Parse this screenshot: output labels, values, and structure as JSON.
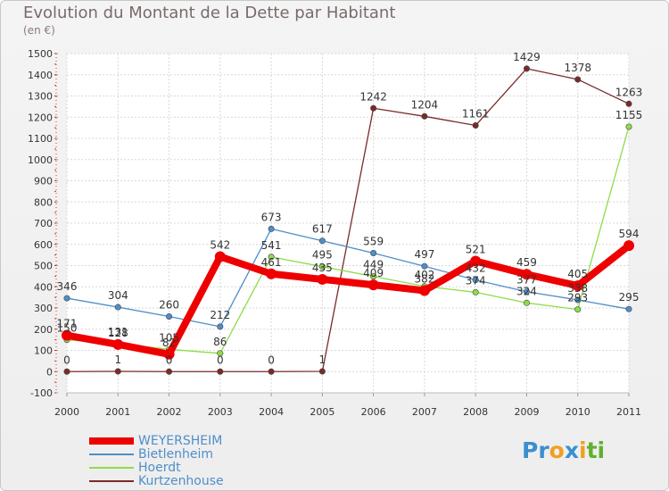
{
  "title": "Evolution du Montant de la Dette par Habitant",
  "subtitle": "(en €)",
  "logo": {
    "parts": [
      {
        "t": "Pr",
        "color": "#3a8fd0"
      },
      {
        "t": "o",
        "color": "#f0a020"
      },
      {
        "t": "x",
        "color": "#3a8fd0"
      },
      {
        "t": "i",
        "color": "#f0a020"
      },
      {
        "t": "ti",
        "color": "#60b030"
      }
    ]
  },
  "chart_data": {
    "type": "line",
    "categories": [
      "2000",
      "2001",
      "2002",
      "2003",
      "2004",
      "2005",
      "2006",
      "2007",
      "2008",
      "2009",
      "2010",
      "2011"
    ],
    "ylim": [
      -100,
      1500
    ],
    "yticks": [
      -100,
      0,
      100,
      200,
      300,
      400,
      500,
      600,
      700,
      800,
      900,
      1000,
      1100,
      1200,
      1300,
      1400,
      1500
    ],
    "grid": true,
    "legend_position": "bottom-left",
    "series": [
      {
        "name": "WEYERSHEIM",
        "color": "#ee0000",
        "values": [
          171,
          128,
          82,
          542,
          461,
          435,
          409,
          382,
          521,
          459,
          405,
          594
        ],
        "labels": [
          "171",
          "128",
          "82",
          "542",
          "461",
          "435",
          "409",
          "382",
          "521",
          "459",
          "405",
          "594"
        ]
      },
      {
        "name": "Bietlenheim",
        "color": "#4f8ec9",
        "values": [
          346,
          304,
          260,
          212,
          673,
          617,
          559,
          497,
          432,
          377,
          338,
          295
        ],
        "labels": [
          "346",
          "304",
          "260",
          "212",
          "673",
          "617",
          "559",
          "497",
          "432",
          "377",
          "338",
          "295"
        ]
      },
      {
        "name": "Hoerdt",
        "color": "#8edc4a",
        "values": [
          150,
          131,
          105,
          86,
          541,
          495,
          449,
          402,
          374,
          324,
          293,
          1155
        ],
        "labels": [
          "150",
          "131",
          "105",
          "86",
          "541",
          "495",
          "449",
          "402",
          "374",
          "324",
          "293",
          "1155"
        ]
      },
      {
        "name": "Kurtzenhouse",
        "color": "#7a2a2a",
        "values": [
          0,
          1,
          0,
          0,
          0,
          1,
          1242,
          1204,
          1161,
          1429,
          1378,
          1263
        ],
        "labels": [
          "0",
          "1",
          "0",
          "0",
          "0",
          "1",
          "1242",
          "1204",
          "1161",
          "1429",
          "1378",
          "1263"
        ]
      }
    ]
  }
}
